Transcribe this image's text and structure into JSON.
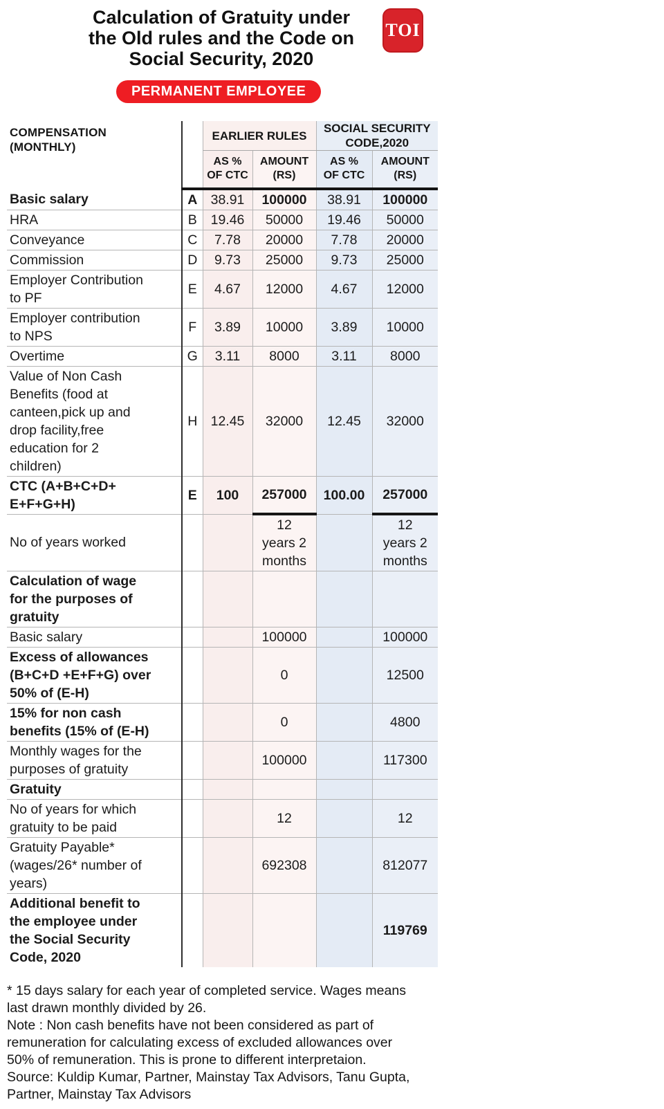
{
  "title": "Calculation of Gratuity under\nthe Old rules and the Code on\nSocial Security, 2020",
  "logo": {
    "text": "TOI",
    "bg_color": "#d8232a"
  },
  "badge": {
    "label": "PERMANENT EMPLOYEE",
    "bg_color": "#ee1d23"
  },
  "colors": {
    "earlier_pct_col": "#f9eeed",
    "earlier_amt_col": "#fcf4f3",
    "ssc_pct_col": "#e4ebf5",
    "ssc_amt_col": "#eaeff7",
    "header_pink": "#faf0ee",
    "header_blue": "#e8eef6",
    "accent_red": "#ee1d23"
  },
  "chart_data": {
    "type": "table",
    "title": "Calculation of Gratuity under the Old rules and the Code on Social Security, 2020",
    "header": {
      "corner": "COMPENSATION\n(MONTHLY)",
      "groups": [
        "EARLIER RULES",
        "SOCIAL SECURITY\nCODE,2020"
      ],
      "subs": [
        "AS %\nOF CTC",
        "AMOUNT\n(RS)",
        "AS %\nOF CTC",
        "AMOUNT\n(RS)"
      ]
    },
    "rows": [
      {
        "label": "Basic salary",
        "letter": "A",
        "er_pct": "38.91",
        "er_amt": "100000",
        "ssc_pct": "38.91",
        "ssc_amt": "100000",
        "bold": [
          "label",
          "letter",
          "er_amt",
          "ssc_amt"
        ]
      },
      {
        "label": "HRA",
        "letter": "B",
        "er_pct": "19.46",
        "er_amt": "50000",
        "ssc_pct": "19.46",
        "ssc_amt": "50000",
        "bold": []
      },
      {
        "label": "Conveyance",
        "letter": "C",
        "er_pct": "7.78",
        "er_amt": "20000",
        "ssc_pct": "7.78",
        "ssc_amt": "20000",
        "bold": []
      },
      {
        "label": "Commission",
        "letter": "D",
        "er_pct": "9.73",
        "er_amt": "25000",
        "ssc_pct": "9.73",
        "ssc_amt": "25000",
        "bold": []
      },
      {
        "label": "Employer Contribution\nto PF",
        "letter": "E",
        "er_pct": "4.67",
        "er_amt": "12000",
        "ssc_pct": "4.67",
        "ssc_amt": "12000",
        "bold": []
      },
      {
        "label": "Employer contribution\nto NPS",
        "letter": "F",
        "er_pct": "3.89",
        "er_amt": "10000",
        "ssc_pct": "3.89",
        "ssc_amt": "10000",
        "bold": []
      },
      {
        "label": "Overtime",
        "letter": "G",
        "er_pct": "3.11",
        "er_amt": "8000",
        "ssc_pct": "3.11",
        "ssc_amt": "8000",
        "bold": []
      },
      {
        "label": "Value of Non Cash\nBenefits (food at\ncanteen,pick up and\ndrop facility,free\neducation for 2\nchildren)",
        "letter": "H",
        "er_pct": "12.45",
        "er_amt": "32000",
        "ssc_pct": "12.45",
        "ssc_amt": "32000",
        "bold": []
      },
      {
        "label": "CTC (A+B+C+D+\nE+F+G+H)",
        "letter": "E",
        "er_pct": "100",
        "er_amt": "257000",
        "ssc_pct": "100.00",
        "ssc_amt": "257000",
        "bold": [
          "label",
          "letter",
          "er_pct",
          "er_amt",
          "ssc_pct",
          "ssc_amt"
        ],
        "underline_amounts": true
      },
      {
        "label": "No of years worked",
        "letter": "",
        "er_pct": "",
        "er_amt": "12\nyears 2\nmonths",
        "ssc_pct": "",
        "ssc_amt": "12\nyears  2\nmonths",
        "bold": []
      },
      {
        "label": "Calculation of wage\nfor the purposes of\ngratuity",
        "letter": "",
        "er_pct": "",
        "er_amt": "",
        "ssc_pct": "",
        "ssc_amt": "",
        "bold": [
          "label"
        ]
      },
      {
        "label": "Basic salary",
        "letter": "",
        "er_pct": "",
        "er_amt": "100000",
        "ssc_pct": "",
        "ssc_amt": "100000",
        "bold": []
      },
      {
        "label": "Excess of allowances\n(B+C+D +E+F+G) over\n50% of (E-H)",
        "letter": "",
        "er_pct": "",
        "er_amt": "0",
        "ssc_pct": "",
        "ssc_amt": "12500",
        "bold": [
          "label"
        ]
      },
      {
        "label": "15% for non cash\nbenefits (15% of (E-H)",
        "letter": "",
        "er_pct": "",
        "er_amt": "0",
        "ssc_pct": "",
        "ssc_amt": "4800",
        "bold": [
          "label"
        ]
      },
      {
        "label": "Monthly wages for the\npurposes of gratuity",
        "letter": "",
        "er_pct": "",
        "er_amt": "100000",
        "ssc_pct": "",
        "ssc_amt": "117300",
        "bold": []
      },
      {
        "label": "Gratuity",
        "letter": "",
        "er_pct": "",
        "er_amt": "",
        "ssc_pct": "",
        "ssc_amt": "",
        "bold": [
          "label"
        ]
      },
      {
        "label": "No of years for which\ngratuity to be paid",
        "letter": "",
        "er_pct": "",
        "er_amt": "12",
        "ssc_pct": "",
        "ssc_amt": "12",
        "bold": []
      },
      {
        "label": "Gratuity  Payable*\n(wages/26* number of\nyears)",
        "letter": "",
        "er_pct": "",
        "er_amt": "692308",
        "ssc_pct": "",
        "ssc_amt": "812077",
        "bold": []
      },
      {
        "label": "Additional benefit to\nthe employee  under\nthe Social Security\nCode, 2020",
        "letter": "",
        "er_pct": "",
        "er_amt": "",
        "ssc_pct": "",
        "ssc_amt": "119769",
        "bold": [
          "label",
          "ssc_amt"
        ]
      }
    ]
  },
  "footnotes": [
    "* 15 days salary for each year of completed service. Wages means last drawn monthly  divided by 26.",
    "Note : Non cash benefits have not been considered as part of remuneration for calculating excess of excluded allowances over 50% of remuneration. This is prone to different interpretaion.",
    "Source: Kuldip Kumar, Partner, Mainstay Tax Advisors, Tanu Gupta, Partner, Mainstay Tax Advisors"
  ]
}
